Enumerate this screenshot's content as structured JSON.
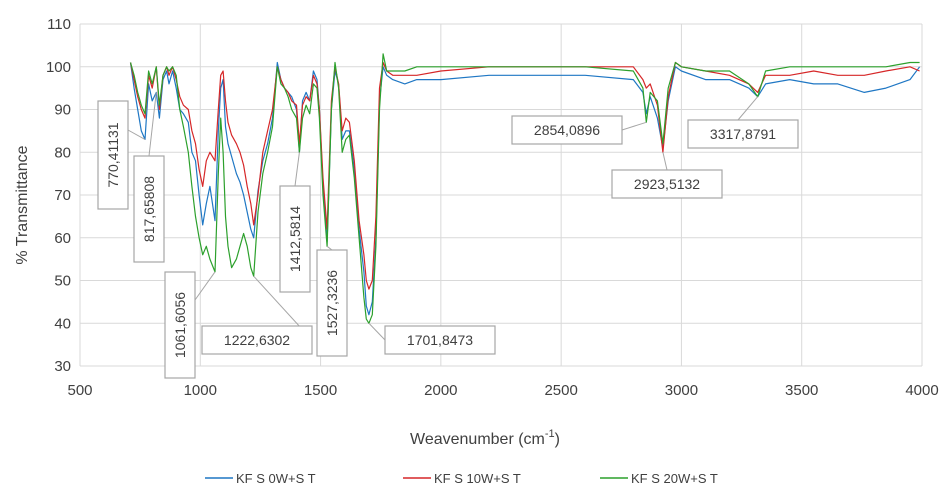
{
  "chart_data": {
    "type": "line",
    "title": "",
    "xlabel": "Weavenumber (cm",
    "xlabel_sup": "-1",
    "xlabel_close": ")",
    "ylabel": "% Transmittance",
    "xlim": [
      500,
      4000
    ],
    "ylim": [
      30,
      110
    ],
    "grid": true,
    "legend_position": "bottom",
    "x_ticks": [
      "500",
      "1000",
      "1500",
      "2000",
      "2500",
      "3000",
      "3500",
      "4000"
    ],
    "y_ticks": [
      "30",
      "40",
      "50",
      "60",
      "70",
      "80",
      "90",
      "100",
      "110"
    ],
    "series": [
      {
        "name": "KF  S 0W+S T",
        "color": "#1f77c4",
        "points": [
          [
            710,
            101
          ],
          [
            725,
            95
          ],
          [
            740,
            90
          ],
          [
            755,
            85
          ],
          [
            770,
            83
          ],
          [
            785,
            96
          ],
          [
            800,
            92
          ],
          [
            817,
            94
          ],
          [
            830,
            88
          ],
          [
            845,
            97
          ],
          [
            860,
            99
          ],
          [
            870,
            96
          ],
          [
            885,
            99
          ],
          [
            900,
            95
          ],
          [
            915,
            90
          ],
          [
            930,
            89
          ],
          [
            950,
            87
          ],
          [
            965,
            80
          ],
          [
            980,
            78
          ],
          [
            995,
            70
          ],
          [
            1010,
            63
          ],
          [
            1025,
            68
          ],
          [
            1040,
            72
          ],
          [
            1061,
            64
          ],
          [
            1075,
            85
          ],
          [
            1085,
            95
          ],
          [
            1095,
            97
          ],
          [
            1105,
            86
          ],
          [
            1115,
            82
          ],
          [
            1130,
            79
          ],
          [
            1150,
            75
          ],
          [
            1165,
            73
          ],
          [
            1180,
            70
          ],
          [
            1195,
            66
          ],
          [
            1210,
            62
          ],
          [
            1222,
            60
          ],
          [
            1240,
            71
          ],
          [
            1260,
            78
          ],
          [
            1280,
            82
          ],
          [
            1300,
            88
          ],
          [
            1320,
            101
          ],
          [
            1335,
            97
          ],
          [
            1350,
            95
          ],
          [
            1365,
            94
          ],
          [
            1380,
            93
          ],
          [
            1400,
            90
          ],
          [
            1412,
            80
          ],
          [
            1425,
            92
          ],
          [
            1440,
            94
          ],
          [
            1455,
            92
          ],
          [
            1470,
            99
          ],
          [
            1485,
            97
          ],
          [
            1495,
            90
          ],
          [
            1510,
            72
          ],
          [
            1527,
            59
          ],
          [
            1545,
            90
          ],
          [
            1560,
            99
          ],
          [
            1575,
            96
          ],
          [
            1590,
            83
          ],
          [
            1605,
            85
          ],
          [
            1620,
            85
          ],
          [
            1640,
            76
          ],
          [
            1660,
            62
          ],
          [
            1680,
            52
          ],
          [
            1690,
            44
          ],
          [
            1701,
            42
          ],
          [
            1715,
            45
          ],
          [
            1730,
            60
          ],
          [
            1745,
            92
          ],
          [
            1760,
            100
          ],
          [
            1775,
            98
          ],
          [
            1800,
            97
          ],
          [
            1850,
            96
          ],
          [
            1900,
            97
          ],
          [
            2000,
            97
          ],
          [
            2200,
            98
          ],
          [
            2400,
            98
          ],
          [
            2600,
            98
          ],
          [
            2800,
            97
          ],
          [
            2840,
            94
          ],
          [
            2854,
            89
          ],
          [
            2870,
            93
          ],
          [
            2900,
            88
          ],
          [
            2923,
            81
          ],
          [
            2945,
            92
          ],
          [
            2975,
            100
          ],
          [
            3000,
            99
          ],
          [
            3100,
            97
          ],
          [
            3200,
            97
          ],
          [
            3280,
            95
          ],
          [
            3317,
            93
          ],
          [
            3350,
            96
          ],
          [
            3450,
            97
          ],
          [
            3550,
            96
          ],
          [
            3650,
            96
          ],
          [
            3760,
            94
          ],
          [
            3850,
            95
          ],
          [
            3950,
            97
          ],
          [
            3990,
            100
          ]
        ]
      },
      {
        "name": "KF  S 10W+S T",
        "color": "#d62728",
        "points": [
          [
            710,
            101
          ],
          [
            725,
            97
          ],
          [
            740,
            93
          ],
          [
            755,
            90
          ],
          [
            770,
            88
          ],
          [
            785,
            98
          ],
          [
            800,
            95
          ],
          [
            817,
            100
          ],
          [
            830,
            90
          ],
          [
            845,
            98
          ],
          [
            860,
            100
          ],
          [
            870,
            98
          ],
          [
            885,
            100
          ],
          [
            900,
            97
          ],
          [
            915,
            93
          ],
          [
            930,
            91
          ],
          [
            950,
            90
          ],
          [
            965,
            85
          ],
          [
            980,
            82
          ],
          [
            995,
            76
          ],
          [
            1010,
            72
          ],
          [
            1025,
            78
          ],
          [
            1040,
            80
          ],
          [
            1061,
            78
          ],
          [
            1075,
            90
          ],
          [
            1085,
            98
          ],
          [
            1095,
            99
          ],
          [
            1105,
            92
          ],
          [
            1115,
            87
          ],
          [
            1130,
            84
          ],
          [
            1150,
            82
          ],
          [
            1165,
            80
          ],
          [
            1180,
            77
          ],
          [
            1195,
            72
          ],
          [
            1210,
            68
          ],
          [
            1222,
            63
          ],
          [
            1240,
            70
          ],
          [
            1260,
            80
          ],
          [
            1280,
            85
          ],
          [
            1300,
            90
          ],
          [
            1320,
            100
          ],
          [
            1335,
            97
          ],
          [
            1350,
            95
          ],
          [
            1365,
            94
          ],
          [
            1380,
            92
          ],
          [
            1400,
            91
          ],
          [
            1412,
            82
          ],
          [
            1425,
            91
          ],
          [
            1440,
            93
          ],
          [
            1455,
            92
          ],
          [
            1470,
            98
          ],
          [
            1485,
            96
          ],
          [
            1495,
            90
          ],
          [
            1510,
            74
          ],
          [
            1527,
            62
          ],
          [
            1545,
            92
          ],
          [
            1560,
            100
          ],
          [
            1575,
            96
          ],
          [
            1590,
            85
          ],
          [
            1605,
            88
          ],
          [
            1620,
            87
          ],
          [
            1640,
            78
          ],
          [
            1660,
            64
          ],
          [
            1680,
            56
          ],
          [
            1690,
            50
          ],
          [
            1701,
            48
          ],
          [
            1715,
            50
          ],
          [
            1730,
            65
          ],
          [
            1745,
            95
          ],
          [
            1760,
            101
          ],
          [
            1775,
            99
          ],
          [
            1800,
            98
          ],
          [
            1850,
            98
          ],
          [
            1900,
            98
          ],
          [
            2000,
            99
          ],
          [
            2200,
            100
          ],
          [
            2400,
            100
          ],
          [
            2600,
            100
          ],
          [
            2800,
            100
          ],
          [
            2840,
            97
          ],
          [
            2854,
            95
          ],
          [
            2870,
            96
          ],
          [
            2900,
            91
          ],
          [
            2923,
            80
          ],
          [
            2945,
            93
          ],
          [
            2975,
            101
          ],
          [
            3000,
            100
          ],
          [
            3100,
            99
          ],
          [
            3200,
            98
          ],
          [
            3280,
            96
          ],
          [
            3317,
            94
          ],
          [
            3350,
            98
          ],
          [
            3450,
            98
          ],
          [
            3550,
            99
          ],
          [
            3650,
            98
          ],
          [
            3760,
            98
          ],
          [
            3850,
            99
          ],
          [
            3950,
            100
          ],
          [
            3990,
            99
          ]
        ]
      },
      {
        "name": "KF  S 20W+S T",
        "color": "#2ca02c",
        "points": [
          [
            710,
            101
          ],
          [
            725,
            98
          ],
          [
            740,
            94
          ],
          [
            755,
            91
          ],
          [
            770,
            89
          ],
          [
            785,
            99
          ],
          [
            800,
            96
          ],
          [
            817,
            100
          ],
          [
            830,
            91
          ],
          [
            845,
            98
          ],
          [
            860,
            100
          ],
          [
            870,
            99
          ],
          [
            885,
            100
          ],
          [
            900,
            98
          ],
          [
            915,
            90
          ],
          [
            930,
            86
          ],
          [
            950,
            80
          ],
          [
            965,
            72
          ],
          [
            980,
            65
          ],
          [
            995,
            60
          ],
          [
            1010,
            56
          ],
          [
            1025,
            58
          ],
          [
            1040,
            55
          ],
          [
            1061,
            52
          ],
          [
            1075,
            75
          ],
          [
            1085,
            88
          ],
          [
            1095,
            80
          ],
          [
            1105,
            65
          ],
          [
            1115,
            58
          ],
          [
            1130,
            53
          ],
          [
            1150,
            55
          ],
          [
            1165,
            58
          ],
          [
            1180,
            61
          ],
          [
            1195,
            58
          ],
          [
            1210,
            53
          ],
          [
            1222,
            51
          ],
          [
            1240,
            66
          ],
          [
            1260,
            75
          ],
          [
            1280,
            80
          ],
          [
            1300,
            86
          ],
          [
            1320,
            100
          ],
          [
            1335,
            96
          ],
          [
            1350,
            95
          ],
          [
            1365,
            93
          ],
          [
            1380,
            90
          ],
          [
            1400,
            88
          ],
          [
            1412,
            80
          ],
          [
            1425,
            88
          ],
          [
            1440,
            91
          ],
          [
            1455,
            89
          ],
          [
            1470,
            96
          ],
          [
            1485,
            95
          ],
          [
            1495,
            88
          ],
          [
            1510,
            70
          ],
          [
            1527,
            58
          ],
          [
            1545,
            90
          ],
          [
            1560,
            101
          ],
          [
            1575,
            95
          ],
          [
            1590,
            80
          ],
          [
            1605,
            83
          ],
          [
            1620,
            84
          ],
          [
            1640,
            74
          ],
          [
            1660,
            60
          ],
          [
            1680,
            46
          ],
          [
            1690,
            41
          ],
          [
            1701,
            40
          ],
          [
            1715,
            42
          ],
          [
            1730,
            58
          ],
          [
            1745,
            90
          ],
          [
            1760,
            103
          ],
          [
            1775,
            99
          ],
          [
            1800,
            99
          ],
          [
            1850,
            99
          ],
          [
            1900,
            100
          ],
          [
            2000,
            100
          ],
          [
            2200,
            100
          ],
          [
            2400,
            100
          ],
          [
            2600,
            100
          ],
          [
            2800,
            99
          ],
          [
            2840,
            95
          ],
          [
            2854,
            87
          ],
          [
            2870,
            94
          ],
          [
            2900,
            92
          ],
          [
            2923,
            82
          ],
          [
            2945,
            95
          ],
          [
            2975,
            101
          ],
          [
            3000,
            100
          ],
          [
            3100,
            99
          ],
          [
            3200,
            99
          ],
          [
            3280,
            96
          ],
          [
            3317,
            93
          ],
          [
            3350,
            99
          ],
          [
            3450,
            100
          ],
          [
            3550,
            100
          ],
          [
            3650,
            100
          ],
          [
            3760,
            100
          ],
          [
            3850,
            100
          ],
          [
            3950,
            101
          ],
          [
            3990,
            101
          ]
        ]
      }
    ],
    "annotations": [
      {
        "text": "770,41131",
        "x": 770,
        "y": 83
      },
      {
        "text": "817,65808",
        "x": 817,
        "y": 94
      },
      {
        "text": "1061,6056",
        "x": 1061,
        "y": 52
      },
      {
        "text": "1222,6302",
        "x": 1222,
        "y": 51
      },
      {
        "text": "1412,5814",
        "x": 1412,
        "y": 80
      },
      {
        "text": "1527,3236",
        "x": 1527,
        "y": 58
      },
      {
        "text": "1701,8473",
        "x": 1701,
        "y": 40
      },
      {
        "text": "2854,0896",
        "x": 2854,
        "y": 87
      },
      {
        "text": "2923,5132",
        "x": 2923,
        "y": 80
      },
      {
        "text": "3317,8791",
        "x": 3317,
        "y": 93
      }
    ]
  }
}
